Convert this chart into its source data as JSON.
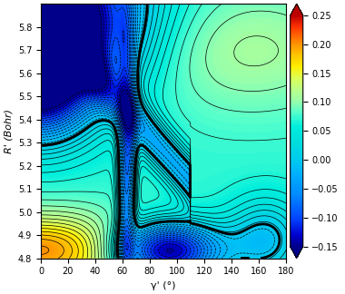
{
  "gamma_min": 0,
  "gamma_max": 180,
  "R_min": 4.8,
  "R_max": 5.9,
  "colorbar_min": -0.15,
  "colorbar_max": 0.25,
  "xlabel": "γ' (°)",
  "ylabel": "R' (Bohr)",
  "xticks": [
    0,
    20,
    40,
    60,
    80,
    100,
    120,
    140,
    160,
    180
  ],
  "yticks": [
    4.8,
    4.9,
    5.0,
    5.1,
    5.2,
    5.3,
    5.4,
    5.5,
    5.6,
    5.7,
    5.8
  ],
  "colorbar_ticks": [
    0.25,
    0.2,
    0.15,
    0.1,
    0.05,
    0.0,
    -0.05,
    -0.1,
    -0.15
  ],
  "n_contours": 40
}
